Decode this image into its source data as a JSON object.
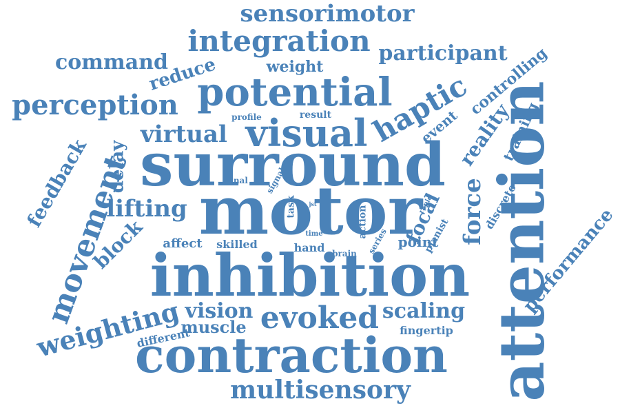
{
  "color": "#4a82b8",
  "words": [
    {
      "text": "sensorimotor",
      "weight": 34
    },
    {
      "text": "integration",
      "weight": 42
    },
    {
      "text": "command",
      "weight": 30
    },
    {
      "text": "participant",
      "weight": 30
    },
    {
      "text": "reduce",
      "weight": 26
    },
    {
      "text": "weight",
      "weight": 22
    },
    {
      "text": "potential",
      "weight": 56
    },
    {
      "text": "perception",
      "weight": 40
    },
    {
      "text": "controlling",
      "weight": 22
    },
    {
      "text": "event",
      "weight": 20
    },
    {
      "text": "haptic",
      "weight": 42
    },
    {
      "text": "profile",
      "weight": 12
    },
    {
      "text": "result",
      "weight": 14
    },
    {
      "text": "visual",
      "weight": 54
    },
    {
      "text": "virtual",
      "weight": 34
    },
    {
      "text": "reality",
      "weight": 28
    },
    {
      "text": "training",
      "weight": 20
    },
    {
      "text": "attention",
      "weight": 90
    },
    {
      "text": "surround",
      "weight": 86
    },
    {
      "text": "feedback",
      "weight": 28
    },
    {
      "text": "delay",
      "weight": 26
    },
    {
      "text": "final",
      "weight": 12
    },
    {
      "text": "signal",
      "weight": 12
    },
    {
      "text": "force",
      "weight": 34
    },
    {
      "text": "discrete",
      "weight": 16
    },
    {
      "text": "motor",
      "weight": 96
    },
    {
      "text": "lifting",
      "weight": 34
    },
    {
      "text": "movement",
      "weight": 44
    },
    {
      "text": "task",
      "weight": 14
    },
    {
      "text": "jst",
      "weight": 8
    },
    {
      "text": "action",
      "weight": 14
    },
    {
      "text": "rapid",
      "weight": 10
    },
    {
      "text": "focal",
      "weight": 28
    },
    {
      "text": "pianist",
      "weight": 14
    },
    {
      "text": "performance",
      "weight": 26
    },
    {
      "text": "block",
      "weight": 28
    },
    {
      "text": "affect",
      "weight": 18
    },
    {
      "text": "skilled",
      "weight": 16
    },
    {
      "text": "time",
      "weight": 10
    },
    {
      "text": "series",
      "weight": 12
    },
    {
      "text": "point",
      "weight": 20
    },
    {
      "text": "hand",
      "weight": 16
    },
    {
      "text": "brain",
      "weight": 12
    },
    {
      "text": "inhibition",
      "weight": 84
    },
    {
      "text": "vision",
      "weight": 30
    },
    {
      "text": "weighting",
      "weight": 38
    },
    {
      "text": "evoked",
      "weight": 44
    },
    {
      "text": "scaling",
      "weight": 30
    },
    {
      "text": "muscle",
      "weight": 24
    },
    {
      "text": "different",
      "weight": 16
    },
    {
      "text": "fingertip",
      "weight": 16
    },
    {
      "text": "contraction",
      "weight": 70
    },
    {
      "text": "multisensory",
      "weight": 36
    }
  ]
}
